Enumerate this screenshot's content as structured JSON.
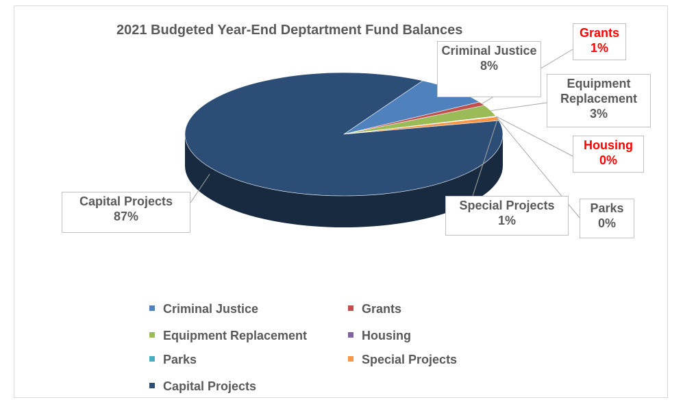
{
  "chart_data": {
    "type": "pie",
    "title": "2021 Budgeted Year-End Deptartment Fund Balances",
    "slices": [
      {
        "name": "Criminal Justice",
        "value": 8,
        "label": "8%",
        "color": "#4f81bd"
      },
      {
        "name": "Grants",
        "value": 1,
        "label": "1%",
        "color": "#c0504d"
      },
      {
        "name": "Equipment Replacement",
        "value": 3,
        "label": "3%",
        "color": "#9bbb59"
      },
      {
        "name": "Housing",
        "value": 0,
        "label": "0%",
        "color": "#8064a2"
      },
      {
        "name": "Parks",
        "value": 0,
        "label": "0%",
        "color": "#4bacc6"
      },
      {
        "name": "Special Projects",
        "value": 1,
        "label": "1%",
        "color": "#f79646"
      },
      {
        "name": "Capital Projects",
        "value": 87,
        "label": "87%",
        "color": "#2c4d75"
      }
    ],
    "legend_position": "bottom",
    "highlight_color": "#ff0000",
    "highlighted_labels": [
      "Grants",
      "Housing"
    ]
  },
  "legend": [
    {
      "name": "Criminal Justice",
      "color": "#4f81bd"
    },
    {
      "name": "Grants",
      "color": "#c0504d"
    },
    {
      "name": "Equipment Replacement",
      "color": "#9bbb59"
    },
    {
      "name": "Housing",
      "color": "#8064a2"
    },
    {
      "name": "Parks",
      "color": "#4bacc6"
    },
    {
      "name": "Special Projects",
      "color": "#f79646"
    },
    {
      "name": "Capital Projects",
      "color": "#2c4d75"
    }
  ]
}
